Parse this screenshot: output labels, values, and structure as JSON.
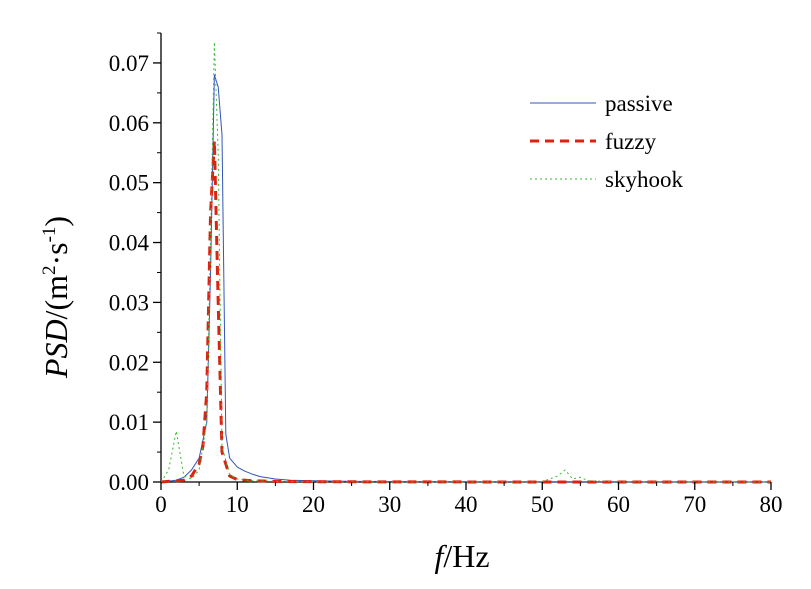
{
  "chart_data": {
    "type": "line",
    "xlabel": {
      "italic": "f",
      "rest": "/Hz"
    },
    "ylabel": {
      "italic": "PSD",
      "rest": "/(m",
      "sup1": "2",
      "mid": "·s",
      "sup2": "-1",
      "end": ")"
    },
    "xlim": [
      0,
      80
    ],
    "ylim": [
      0,
      0.075
    ],
    "x_ticks": [
      "0",
      "10",
      "20",
      "30",
      "40",
      "50",
      "60",
      "70",
      "80"
    ],
    "y_ticks": [
      "0.00",
      "0.01",
      "0.02",
      "0.03",
      "0.04",
      "0.05",
      "0.06",
      "0.07"
    ],
    "grid": false,
    "legend_position": "top-right",
    "series": [
      {
        "name": "passive",
        "color": "#3355bb",
        "style": "solid",
        "x": [
          0,
          2,
          3,
          4,
          5,
          6,
          6.5,
          7,
          7.5,
          8,
          8.5,
          9,
          10,
          11,
          12,
          13,
          15,
          17,
          20,
          25,
          30,
          40,
          50,
          60,
          70,
          80
        ],
        "y": [
          0,
          0.0003,
          0.0008,
          0.002,
          0.004,
          0.01,
          0.035,
          0.068,
          0.066,
          0.058,
          0.008,
          0.004,
          0.0025,
          0.0018,
          0.0013,
          0.0009,
          0.0005,
          0.0003,
          0.0002,
          0.0001,
          8e-05,
          5e-05,
          3e-05,
          2e-05,
          1e-05,
          0
        ]
      },
      {
        "name": "fuzzy",
        "color": "#dd2211",
        "style": "dashed",
        "x": [
          0,
          3,
          4,
          5,
          5.5,
          6,
          6.5,
          7,
          7.5,
          8,
          9,
          10,
          12,
          15,
          20,
          30,
          40,
          50,
          60,
          70,
          80
        ],
        "y": [
          0,
          0.0003,
          0.001,
          0.003,
          0.006,
          0.015,
          0.045,
          0.057,
          0.03,
          0.005,
          0.001,
          0.0004,
          0.0002,
          0.0001,
          5e-05,
          2e-05,
          1e-05,
          1e-05,
          0,
          0,
          0
        ]
      },
      {
        "name": "skyhook",
        "color": "#33bb33",
        "style": "dotted",
        "x": [
          0,
          1,
          2,
          3,
          4,
          5,
          6,
          6.5,
          7,
          7.5,
          8,
          9,
          10,
          12,
          15,
          20,
          30,
          40,
          50,
          52,
          53,
          54,
          55,
          56,
          60,
          70,
          80
        ],
        "y": [
          0,
          0.002,
          0.0085,
          0.001,
          0.0005,
          0.002,
          0.01,
          0.04,
          0.0735,
          0.055,
          0.006,
          0.0012,
          0.0005,
          0.0002,
          0.0001,
          5e-05,
          3e-05,
          2e-05,
          5e-05,
          0.001,
          0.002,
          0.0005,
          0.0008,
          0.0002,
          5e-05,
          2e-05,
          0
        ]
      }
    ]
  }
}
